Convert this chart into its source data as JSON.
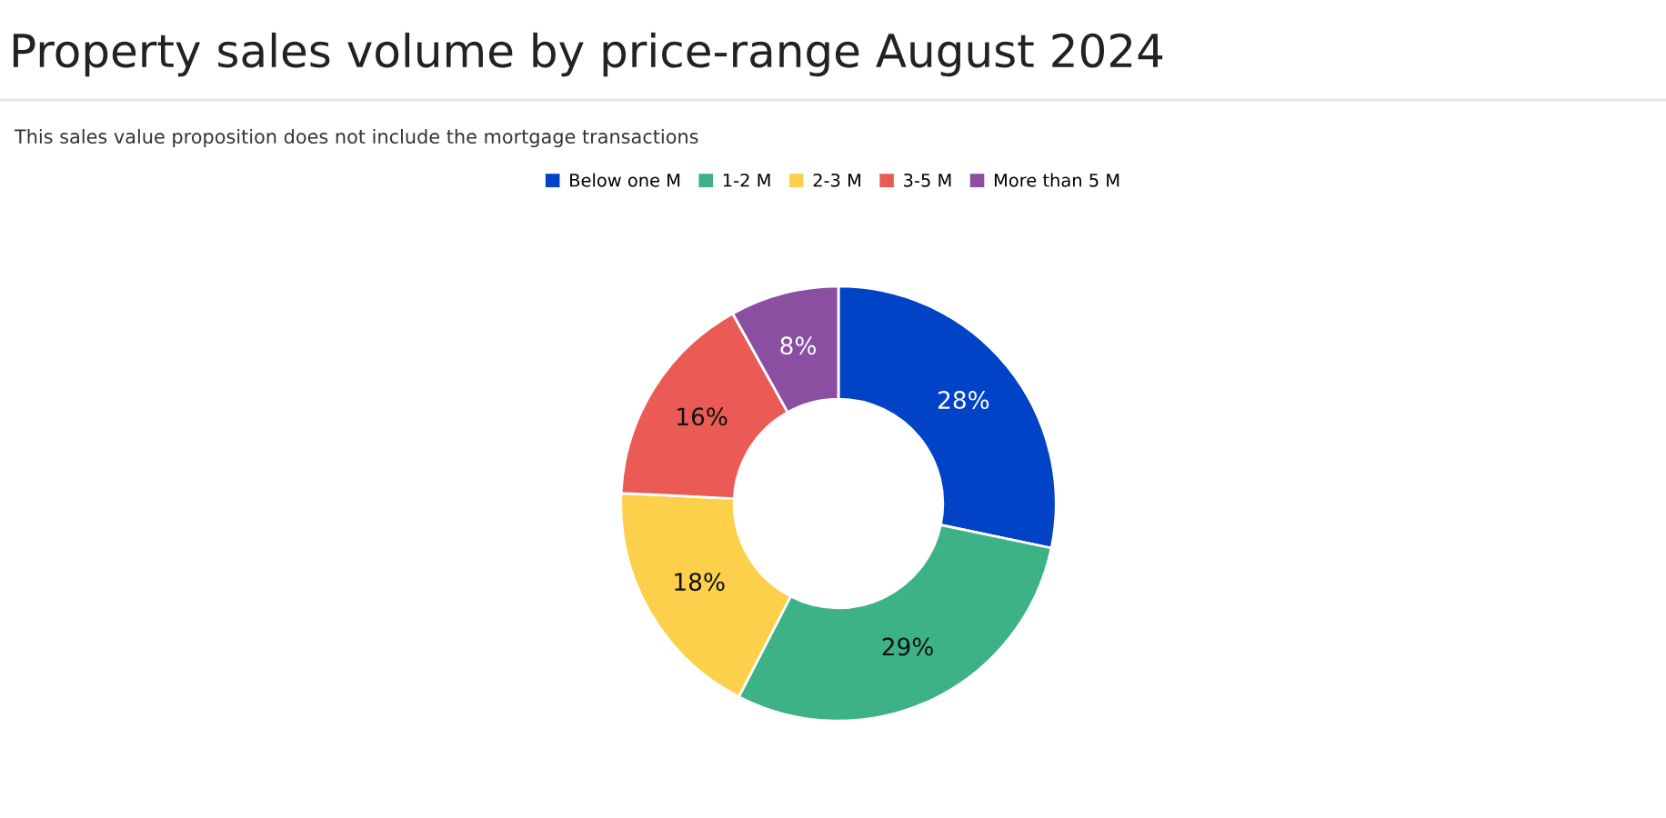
{
  "chart_data": {
    "type": "donut",
    "title": "Property sales volume by price-range August 2024",
    "subtitle": "This sales value proposition does not include the mortgage transactions",
    "categories": [
      "Below one M",
      "1-2 M",
      "2-3 M",
      "3-5 M",
      "More than 5 M"
    ],
    "values": [
      28,
      29,
      18,
      16,
      8
    ],
    "colors": [
      "#0043c6",
      "#3eb287",
      "#fcd04b",
      "#ea5b55",
      "#8a4fa0"
    ],
    "value_labels": [
      "28%",
      "29%",
      "18%",
      "16%",
      "8%"
    ],
    "legend": "top"
  }
}
